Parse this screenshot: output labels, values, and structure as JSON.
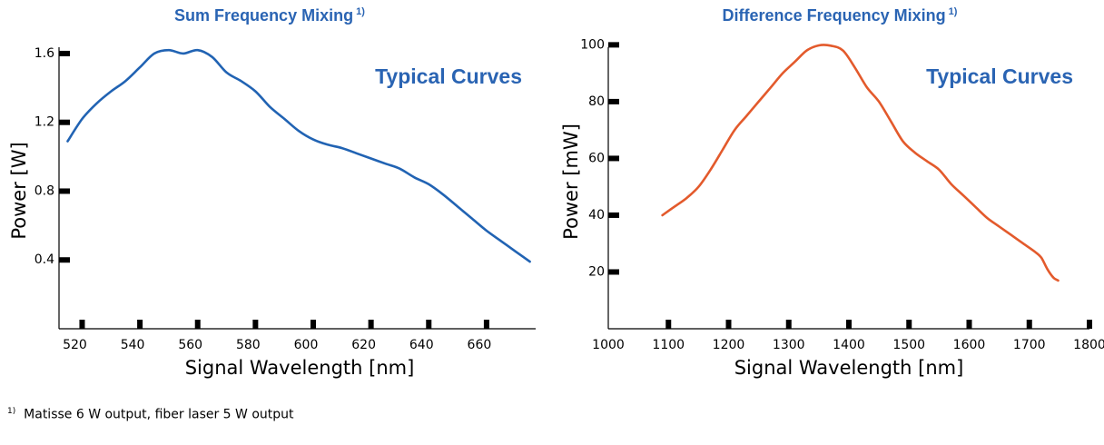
{
  "footnote": {
    "marker": "1)",
    "text": "Matisse 6 W output, fiber laser 5 W output"
  },
  "chart_data": [
    {
      "type": "line",
      "title": "Sum Frequency Mixing",
      "title_note": "1)",
      "annotation": "Typical Curves",
      "xlabel": "Signal Wavelength [nm]",
      "ylabel": "Power [W]",
      "xlim": [
        512,
        677
      ],
      "ylim": [
        0,
        1.7
      ],
      "x_ticks": [
        520,
        540,
        560,
        580,
        600,
        620,
        640,
        660
      ],
      "y_ticks": [
        0.4,
        0.8,
        1.2,
        1.6
      ],
      "y_tick_labels": [
        "0.4",
        "0.8",
        "1.2",
        "1.6"
      ],
      "color": "#2163b3",
      "series": [
        {
          "x": [
            515,
            520,
            525,
            530,
            535,
            540,
            545,
            550,
            555,
            560,
            565,
            570,
            575,
            580,
            585,
            590,
            595,
            600,
            605,
            610,
            615,
            620,
            625,
            630,
            635,
            640,
            645,
            650,
            655,
            660,
            665,
            670,
            675
          ],
          "values": [
            1.09,
            1.22,
            1.31,
            1.38,
            1.44,
            1.52,
            1.6,
            1.62,
            1.6,
            1.62,
            1.58,
            1.49,
            1.44,
            1.38,
            1.29,
            1.22,
            1.15,
            1.1,
            1.07,
            1.05,
            1.02,
            0.99,
            0.96,
            0.93,
            0.88,
            0.84,
            0.78,
            0.71,
            0.64,
            0.57,
            0.51,
            0.45,
            0.39
          ]
        }
      ]
    },
    {
      "type": "line",
      "title": "Difference Frequency Mixing",
      "title_note": "1)",
      "annotation": "Typical Curves",
      "xlabel": "Signal Wavelength [nm]",
      "ylabel": "Power [mW]",
      "xlim": [
        1000,
        1800
      ],
      "ylim": [
        0,
        103
      ],
      "x_ticks": [
        1100,
        1200,
        1300,
        1400,
        1500,
        1600,
        1700,
        1800
      ],
      "x_tick_labels": [
        "1000",
        "1100",
        "1200",
        "1300",
        "1400",
        "1500",
        "1600",
        "1700",
        "1800"
      ],
      "x_tick_label_values": [
        1000,
        1100,
        1200,
        1300,
        1400,
        1500,
        1600,
        1700,
        1800
      ],
      "y_ticks": [
        20,
        40,
        60,
        80,
        100
      ],
      "y_tick_labels": [
        "20",
        "40",
        "60",
        "80",
        "100"
      ],
      "color": "#e35a2c",
      "series": [
        {
          "x": [
            1090,
            1110,
            1130,
            1150,
            1170,
            1190,
            1210,
            1230,
            1250,
            1270,
            1290,
            1310,
            1330,
            1350,
            1370,
            1390,
            1410,
            1430,
            1450,
            1470,
            1490,
            1510,
            1530,
            1550,
            1570,
            1590,
            1610,
            1630,
            1650,
            1670,
            1690,
            1710,
            1720,
            1730,
            1740,
            1748
          ],
          "values": [
            40,
            43,
            46,
            50,
            56,
            63,
            70,
            75,
            80,
            85,
            90,
            94,
            98,
            99.8,
            99.7,
            98,
            92,
            85,
            80,
            73,
            66,
            62,
            59,
            56,
            51,
            47,
            43,
            39,
            36,
            33,
            30,
            27,
            25,
            21,
            18,
            17
          ]
        }
      ]
    }
  ]
}
